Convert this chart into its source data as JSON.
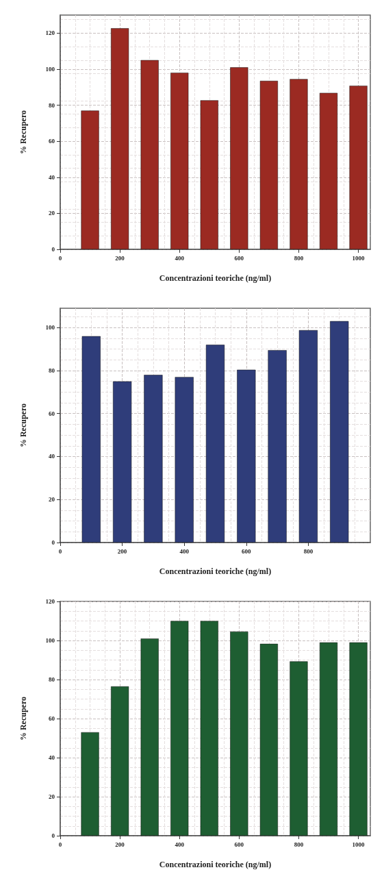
{
  "chart_data": [
    {
      "type": "bar",
      "xlabel": "Concentrazioni teoriche (ng/ml)",
      "ylabel": "% Recupero",
      "x": [
        100,
        200,
        300,
        400,
        500,
        600,
        700,
        800,
        900,
        1000
      ],
      "series": [
        {
          "color": "#9b2a22",
          "values": [
            77,
            122.7,
            105,
            98,
            82.7,
            101,
            93.5,
            94.5,
            86.8,
            90.8
          ]
        }
      ],
      "xlim": [
        0,
        1040
      ],
      "xticks": [
        0,
        200,
        400,
        600,
        800,
        1000
      ],
      "ylim": [
        0,
        130
      ],
      "yticks": [
        0,
        20,
        40,
        60,
        80,
        100,
        120
      ],
      "grid": true
    },
    {
      "type": "bar",
      "xlabel": "Concentrazioni teoriche (ng/ml)",
      "ylabel": "% Recupero",
      "x": [
        100,
        200,
        300,
        400,
        500,
        600,
        700,
        800,
        900
      ],
      "series": [
        {
          "color": "#2f3d7a",
          "values": [
            96,
            75,
            78,
            77,
            92,
            80.4,
            89.5,
            98.8,
            103
          ]
        }
      ],
      "xlim": [
        0,
        1000
      ],
      "xticks": [
        0,
        200,
        400,
        600,
        800
      ],
      "ylim": [
        0,
        109
      ],
      "yticks": [
        0,
        20,
        40,
        60,
        80,
        100
      ],
      "grid": true
    },
    {
      "type": "bar",
      "xlabel": "Concentrazioni teoriche (ng/ml)",
      "ylabel": "% Recupero",
      "x": [
        100,
        200,
        300,
        400,
        500,
        600,
        700,
        800,
        900,
        1000
      ],
      "series": [
        {
          "color": "#1e5e32",
          "values": [
            53,
            76.5,
            101,
            110,
            110,
            104.6,
            98.3,
            89.3,
            99,
            99
          ]
        }
      ],
      "xlim": [
        0,
        1040
      ],
      "xticks": [
        0,
        200,
        400,
        600,
        800,
        1000
      ],
      "ylim": [
        0,
        120
      ],
      "yticks": [
        0,
        20,
        40,
        60,
        80,
        100,
        120
      ],
      "grid": true
    }
  ]
}
